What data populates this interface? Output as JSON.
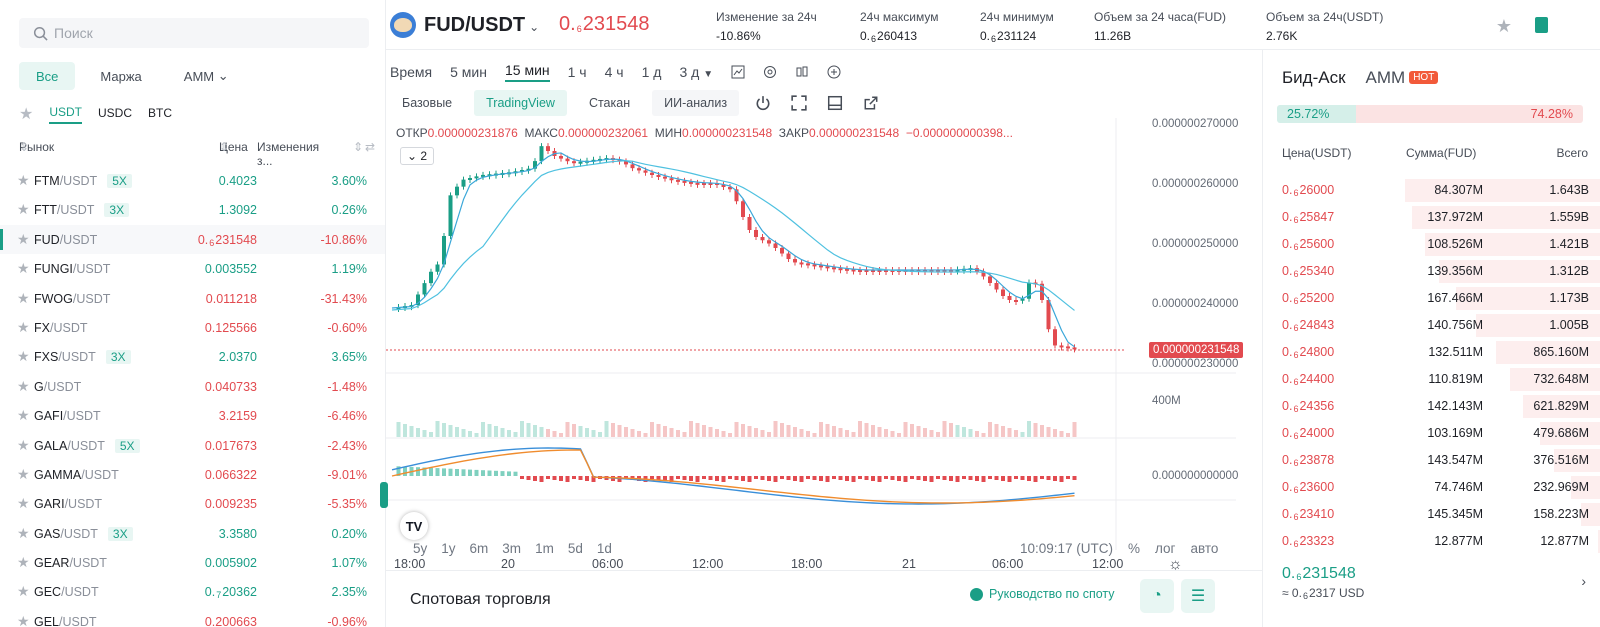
{
  "search": {
    "placeholder": "Поиск"
  },
  "filters": [
    "Все",
    "Маржа",
    "AMM"
  ],
  "quotes": [
    "USDT",
    "USDC",
    "BTC"
  ],
  "market_header": {
    "market": "Рынок",
    "price": "Цена",
    "change": "Изменения з..."
  },
  "markets": [
    {
      "base": "FTM",
      "quote": "/USDT",
      "lev": "5X",
      "price": "0.4023",
      "change": "3.60%",
      "up": true
    },
    {
      "base": "FTT",
      "quote": "/USDT",
      "lev": "3X",
      "price": "1.3092",
      "change": "0.26%",
      "up": true
    },
    {
      "base": "FUD",
      "quote": "/USDT",
      "lev": "",
      "price_pre": "0.",
      "price_sub": "6",
      "price": "231548",
      "change": "-10.86%",
      "up": false,
      "selected": true
    },
    {
      "base": "FUNGI",
      "quote": "/USDT",
      "lev": "",
      "price": "0.003552",
      "change": "1.19%",
      "up": true
    },
    {
      "base": "FWOG",
      "quote": "/USDT",
      "lev": "",
      "price": "0.011218",
      "change": "-31.43%",
      "up": false
    },
    {
      "base": "FX",
      "quote": "/USDT",
      "lev": "",
      "price": "0.125566",
      "change": "-0.60%",
      "up": false
    },
    {
      "base": "FXS",
      "quote": "/USDT",
      "lev": "3X",
      "price": "2.0370",
      "change": "3.65%",
      "up": true
    },
    {
      "base": "G",
      "quote": "/USDT",
      "lev": "",
      "price": "0.040733",
      "change": "-1.48%",
      "up": false
    },
    {
      "base": "GAFI",
      "quote": "/USDT",
      "lev": "",
      "price": "3.2159",
      "change": "-6.46%",
      "up": false
    },
    {
      "base": "GALA",
      "quote": "/USDT",
      "lev": "5X",
      "price": "0.017673",
      "change": "-2.43%",
      "up": false
    },
    {
      "base": "GAMMA",
      "quote": "/USDT",
      "lev": "",
      "price": "0.066322",
      "change": "-9.01%",
      "up": false
    },
    {
      "base": "GARI",
      "quote": "/USDT",
      "lev": "",
      "price": "0.009235",
      "change": "-5.35%",
      "up": false
    },
    {
      "base": "GAS",
      "quote": "/USDT",
      "lev": "3X",
      "price": "3.3580",
      "change": "0.20%",
      "up": true
    },
    {
      "base": "GEAR",
      "quote": "/USDT",
      "lev": "",
      "price": "0.005902",
      "change": "1.07%",
      "up": true
    },
    {
      "base": "GEC",
      "quote": "/USDT",
      "lev": "",
      "price_pre": "0.",
      "price_sub": "7",
      "price": "20362",
      "change": "2.35%",
      "up": true
    },
    {
      "base": "GEL",
      "quote": "/USDT",
      "lev": "",
      "price": "0.200663",
      "change": "-0.96%",
      "up": false
    }
  ],
  "header": {
    "pair": "FUD/USDT",
    "last_pre": "0.",
    "last_sub": "6",
    "last": "231548",
    "stats": [
      {
        "label": "Изменение за 24ч",
        "value": "-10.86%",
        "red": true
      },
      {
        "label": "24ч максимум",
        "value_pre": "0.",
        "value_sub": "6",
        "value": "260413"
      },
      {
        "label": "24ч минимум",
        "value_pre": "0.",
        "value_sub": "6",
        "value": "231124"
      },
      {
        "label": "Объем за 24 часа(FUD)",
        "value": "11.26B"
      },
      {
        "label": "Объем за 24ч(USDT)",
        "value": "2.76K"
      }
    ]
  },
  "timeframes": [
    "Время",
    "5 мин",
    "15 мин",
    "1 ч",
    "4 ч",
    "1 д",
    "3 д"
  ],
  "views": [
    "Базовые",
    "TradingView",
    "Стакан",
    "ИИ-анализ"
  ],
  "ohlc": {
    "o_label": "ОТКР",
    "o": "0.000000231876",
    "h_label": "МАКС",
    "h": "0.000000232061",
    "l_label": "МИН",
    "l": "0.000000231548",
    "c_label": "ЗАКР",
    "c": "0.000000231548",
    "chg": "−0.000000000398..."
  },
  "indicator_count": "2",
  "y_labels": [
    "0.000000270000",
    "0.000000260000",
    "0.000000250000",
    "0.000000240000",
    "0.000000230000"
  ],
  "current_price_tag": "0.000000231548",
  "vol_label": "400M",
  "macd_label": "0.000000000000",
  "x_labels": [
    "18:00",
    "20",
    "06:00",
    "12:00",
    "18:00",
    "21",
    "06:00",
    "12:00"
  ],
  "ranges": [
    "5y",
    "1y",
    "6m",
    "3m",
    "1m",
    "5d",
    "1d"
  ],
  "clock": "10:09:17 (UTC)",
  "scale_opts": [
    "%",
    "лог",
    "авто"
  ],
  "spot": {
    "title": "Спотовая торговля",
    "guide": "Руководство по споту"
  },
  "book": {
    "tabs": [
      "Бид-Аск",
      "AMM"
    ],
    "hot": "HOT",
    "bid_pct": "25.72%",
    "ask_pct": "74.28%",
    "bid_ratio": 0.2572,
    "head": {
      "price": "Цена(USDT)",
      "amount": "Сумма(FUD)",
      "total": "Всего"
    },
    "asks": [
      {
        "p": "26000",
        "q": "84.307M",
        "t": "1.643B",
        "depth": 0.58
      },
      {
        "p": "25847",
        "q": "137.972M",
        "t": "1.559B",
        "depth": 0.56
      },
      {
        "p": "25600",
        "q": "108.526M",
        "t": "1.421B",
        "depth": 0.52
      },
      {
        "p": "25340",
        "q": "139.356M",
        "t": "1.312B",
        "depth": 0.48
      },
      {
        "p": "25200",
        "q": "167.466M",
        "t": "1.173B",
        "depth": 0.43
      },
      {
        "p": "24843",
        "q": "140.756M",
        "t": "1.005B",
        "depth": 0.37
      },
      {
        "p": "24800",
        "q": "132.511M",
        "t": "865.160M",
        "depth": 0.31
      },
      {
        "p": "24400",
        "q": "110.819M",
        "t": "732.648M",
        "depth": 0.27
      },
      {
        "p": "24356",
        "q": "142.143M",
        "t": "621.829M",
        "depth": 0.23
      },
      {
        "p": "24000",
        "q": "103.169M",
        "t": "479.686M",
        "depth": 0.18
      },
      {
        "p": "23878",
        "q": "143.547M",
        "t": "376.516M",
        "depth": 0.14
      },
      {
        "p": "23600",
        "q": "74.746M",
        "t": "232.969M",
        "depth": 0.09
      },
      {
        "p": "23410",
        "q": "145.345M",
        "t": "158.223M",
        "depth": 0.06
      },
      {
        "p": "23323",
        "q": "12.877M",
        "t": "12.877M",
        "depth": 0.01
      }
    ],
    "price_pre": "0.",
    "price_sub": "6",
    "price_prefix": "0.",
    "price": "231548",
    "usd": "≈ 0.",
    "usd_sub": "6",
    "usd_val": "2317 USD"
  },
  "colors": {
    "accent": "#1a9e86",
    "down": "#e24a4f"
  }
}
